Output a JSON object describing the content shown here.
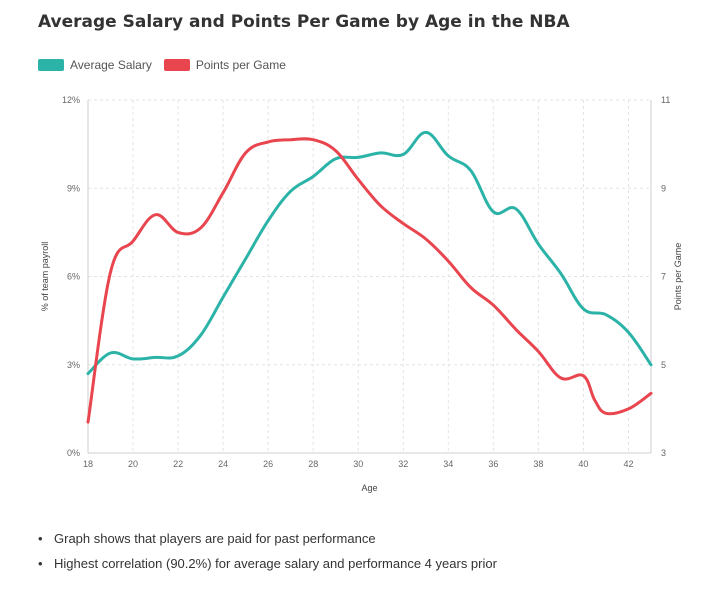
{
  "title": "Average Salary and Points Per Game by Age in the NBA",
  "legend": [
    {
      "label": "Average Salary",
      "color": "#2bb3a8"
    },
    {
      "label": "Points per Game",
      "color": "#e8454f"
    }
  ],
  "notes": [
    "Graph shows that players are paid for past performance",
    "Highest correlation (90.2%) for average salary and performance 4 years prior"
  ],
  "chart_data": {
    "type": "line",
    "xlabel": "Age",
    "ylabel_left": "% of team payroll",
    "ylabel_right": "Points per Game",
    "xlim": [
      18,
      43
    ],
    "ylim_left": [
      0,
      12
    ],
    "ylim_right": [
      3,
      11
    ],
    "x_ticks": [
      "18",
      "20",
      "22",
      "24",
      "26",
      "28",
      "30",
      "32",
      "34",
      "36",
      "38",
      "40",
      "42"
    ],
    "y_left_ticks": [
      "0%",
      "3%",
      "6%",
      "9%",
      "12%"
    ],
    "y_right_ticks": [
      "3",
      "5",
      "7",
      "9",
      "11"
    ],
    "grid": true,
    "legend_position": "top-left",
    "series": [
      {
        "name": "Average Salary",
        "axis": "left",
        "color": "#2bb3a8",
        "x": [
          18,
          19,
          20,
          21,
          22,
          23,
          24,
          25,
          26,
          27,
          28,
          29,
          30,
          31,
          32,
          33,
          34,
          35,
          36,
          37,
          38,
          39,
          40,
          41,
          42,
          43
        ],
        "values": [
          2.7,
          3.4,
          3.2,
          3.25,
          3.3,
          4.0,
          5.3,
          6.6,
          7.9,
          8.9,
          9.4,
          10.0,
          10.05,
          10.2,
          10.15,
          10.9,
          10.1,
          9.6,
          8.2,
          8.3,
          7.1,
          6.1,
          4.9,
          4.7,
          4.1,
          3.0
        ]
      },
      {
        "name": "Points per Game",
        "axis": "right",
        "color": "#e8454f",
        "x": [
          18,
          19,
          20,
          21,
          22,
          23,
          24,
          25,
          26,
          27,
          28,
          29,
          30,
          31,
          32,
          33,
          34,
          35,
          36,
          37,
          38,
          39,
          40,
          40.5,
          41,
          42,
          43
        ],
        "values": [
          3.7,
          7.1,
          7.8,
          8.4,
          8.0,
          8.1,
          8.9,
          9.8,
          10.05,
          10.1,
          10.1,
          9.85,
          9.2,
          8.6,
          8.2,
          7.85,
          7.35,
          6.75,
          6.35,
          5.8,
          5.3,
          4.7,
          4.75,
          4.2,
          3.9,
          4.0,
          4.35
        ]
      }
    ]
  }
}
